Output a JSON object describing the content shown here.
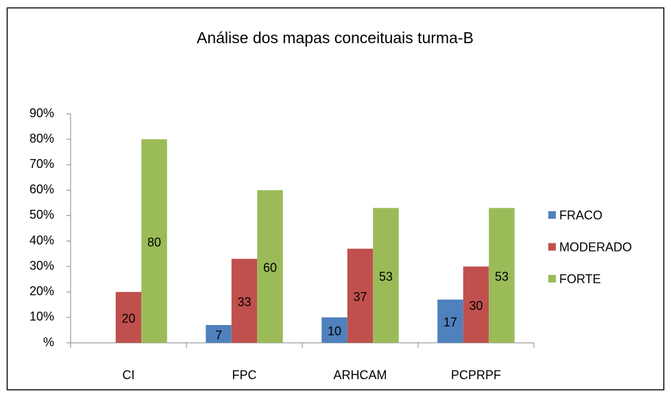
{
  "chart_data": {
    "type": "bar",
    "title": "Análise dos mapas conceituais turma-B",
    "categories": [
      "CI",
      "FPC",
      "ARHCAM",
      "PCPRPF"
    ],
    "series": [
      {
        "name": "FRACO",
        "color": "#4f81bd",
        "values": [
          null,
          7,
          10,
          17
        ]
      },
      {
        "name": "MODERADO",
        "color": "#c0504d",
        "values": [
          20,
          33,
          37,
          30
        ]
      },
      {
        "name": "FORTE",
        "color": "#9bbb59",
        "values": [
          80,
          60,
          53,
          53
        ]
      }
    ],
    "ylim": [
      0,
      90
    ],
    "yticks": [
      {
        "value": 0,
        "label": "%"
      },
      {
        "value": 10,
        "label": "10%"
      },
      {
        "value": 20,
        "label": "20%"
      },
      {
        "value": 30,
        "label": "30%"
      },
      {
        "value": 40,
        "label": "40%"
      },
      {
        "value": 50,
        "label": "50%"
      },
      {
        "value": 60,
        "label": "60%"
      },
      {
        "value": 70,
        "label": "70%"
      },
      {
        "value": 80,
        "label": "80%"
      },
      {
        "value": 90,
        "label": "90%"
      }
    ],
    "grid": false,
    "legend": "right"
  }
}
